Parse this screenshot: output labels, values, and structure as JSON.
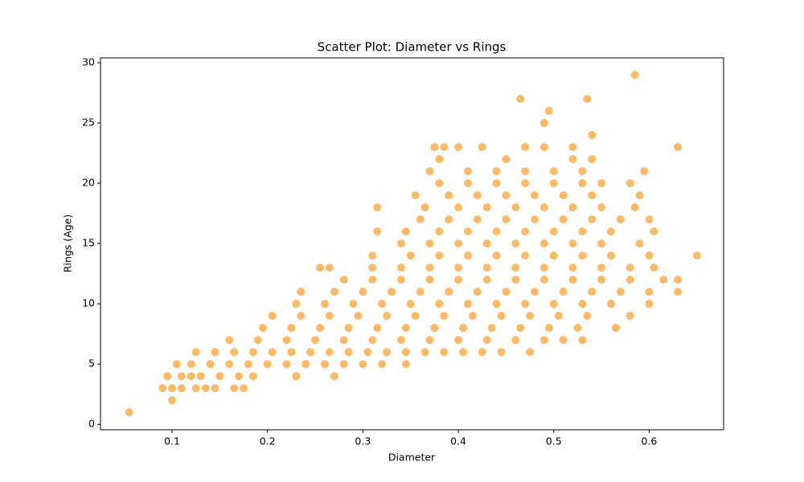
{
  "chart_data": {
    "type": "scatter",
    "title": "Scatter Plot: Diameter vs Rings",
    "x_label": "Diameter",
    "y_label": "Rings (Age)",
    "color": "#ff8c00",
    "opacity": 0.6,
    "grid": false,
    "xlim": [
      0.025,
      0.678
    ],
    "ylim": [
      -0.45,
      30.4
    ],
    "xticks": [
      0.1,
      0.2,
      0.3,
      0.4,
      0.5,
      0.6
    ],
    "yticks": [
      0,
      5,
      10,
      15,
      20,
      25,
      30
    ],
    "x": [
      0.055,
      0.1,
      0.09,
      0.1,
      0.11,
      0.125,
      0.135,
      0.145,
      0.165,
      0.175,
      0.095,
      0.11,
      0.12,
      0.13,
      0.15,
      0.17,
      0.185,
      0.23,
      0.27,
      0.105,
      0.12,
      0.14,
      0.16,
      0.18,
      0.2,
      0.22,
      0.24,
      0.26,
      0.28,
      0.3,
      0.32,
      0.345,
      0.125,
      0.145,
      0.165,
      0.185,
      0.205,
      0.225,
      0.245,
      0.265,
      0.285,
      0.305,
      0.325,
      0.345,
      0.365,
      0.385,
      0.405,
      0.425,
      0.445,
      0.475,
      0.16,
      0.19,
      0.22,
      0.25,
      0.28,
      0.31,
      0.34,
      0.37,
      0.4,
      0.43,
      0.46,
      0.49,
      0.51,
      0.53,
      0.195,
      0.225,
      0.255,
      0.285,
      0.315,
      0.345,
      0.375,
      0.405,
      0.435,
      0.465,
      0.495,
      0.525,
      0.565,
      0.205,
      0.235,
      0.265,
      0.295,
      0.325,
      0.355,
      0.385,
      0.415,
      0.445,
      0.475,
      0.505,
      0.535,
      0.58,
      0.23,
      0.26,
      0.29,
      0.32,
      0.35,
      0.38,
      0.41,
      0.44,
      0.47,
      0.5,
      0.53,
      0.56,
      0.6,
      0.235,
      0.27,
      0.3,
      0.33,
      0.36,
      0.39,
      0.42,
      0.45,
      0.48,
      0.51,
      0.54,
      0.57,
      0.6,
      0.63,
      0.28,
      0.31,
      0.34,
      0.37,
      0.4,
      0.43,
      0.46,
      0.49,
      0.52,
      0.55,
      0.58,
      0.615,
      0.63,
      0.255,
      0.265,
      0.31,
      0.34,
      0.37,
      0.4,
      0.43,
      0.46,
      0.49,
      0.52,
      0.55,
      0.58,
      0.605,
      0.31,
      0.35,
      0.38,
      0.41,
      0.44,
      0.47,
      0.5,
      0.53,
      0.56,
      0.6,
      0.65,
      0.34,
      0.37,
      0.4,
      0.43,
      0.46,
      0.49,
      0.52,
      0.55,
      0.59,
      0.315,
      0.345,
      0.38,
      0.41,
      0.44,
      0.47,
      0.5,
      0.53,
      0.56,
      0.605,
      0.36,
      0.39,
      0.42,
      0.45,
      0.48,
      0.51,
      0.54,
      0.57,
      0.6,
      0.315,
      0.365,
      0.4,
      0.43,
      0.46,
      0.49,
      0.52,
      0.55,
      0.585,
      0.355,
      0.39,
      0.42,
      0.45,
      0.48,
      0.51,
      0.54,
      0.59,
      0.38,
      0.41,
      0.44,
      0.47,
      0.5,
      0.53,
      0.55,
      0.58,
      0.37,
      0.41,
      0.44,
      0.47,
      0.5,
      0.53,
      0.595,
      0.38,
      0.45,
      0.52,
      0.54,
      0.375,
      0.385,
      0.4,
      0.425,
      0.47,
      0.49,
      0.52,
      0.63,
      0.54,
      0.49,
      0.495,
      0.465,
      0.535,
      0.585
    ],
    "y": [
      1,
      2,
      3,
      3,
      3,
      3,
      3,
      3,
      3,
      3,
      4,
      4,
      4,
      4,
      4,
      4,
      4,
      4,
      4,
      5,
      5,
      5,
      5,
      5,
      5,
      5,
      5,
      5,
      5,
      5,
      5,
      5,
      6,
      6,
      6,
      6,
      6,
      6,
      6,
      6,
      6,
      6,
      6,
      6,
      6,
      6,
      6,
      6,
      6,
      6,
      7,
      7,
      7,
      7,
      7,
      7,
      7,
      7,
      7,
      7,
      7,
      7,
      7,
      7,
      8,
      8,
      8,
      8,
      8,
      8,
      8,
      8,
      8,
      8,
      8,
      8,
      8,
      9,
      9,
      9,
      9,
      9,
      9,
      9,
      9,
      9,
      9,
      9,
      9,
      9,
      10,
      10,
      10,
      10,
      10,
      10,
      10,
      10,
      10,
      10,
      10,
      10,
      10,
      11,
      11,
      11,
      11,
      11,
      11,
      11,
      11,
      11,
      11,
      11,
      11,
      11,
      11,
      12,
      12,
      12,
      12,
      12,
      12,
      12,
      12,
      12,
      12,
      12,
      12,
      12,
      13,
      13,
      13,
      13,
      13,
      13,
      13,
      13,
      13,
      13,
      13,
      13,
      13,
      14,
      14,
      14,
      14,
      14,
      14,
      14,
      14,
      14,
      14,
      14,
      15,
      15,
      15,
      15,
      15,
      15,
      15,
      15,
      15,
      16,
      16,
      16,
      16,
      16,
      16,
      16,
      16,
      16,
      16,
      17,
      17,
      17,
      17,
      17,
      17,
      17,
      17,
      17,
      18,
      18,
      18,
      18,
      18,
      18,
      18,
      18,
      18,
      19,
      19,
      19,
      19,
      19,
      19,
      19,
      19,
      20,
      20,
      20,
      20,
      20,
      20,
      20,
      20,
      21,
      21,
      21,
      21,
      21,
      21,
      21,
      22,
      22,
      22,
      22,
      23,
      23,
      23,
      23,
      23,
      23,
      23,
      23,
      24,
      25,
      26,
      27,
      27,
      29
    ]
  }
}
